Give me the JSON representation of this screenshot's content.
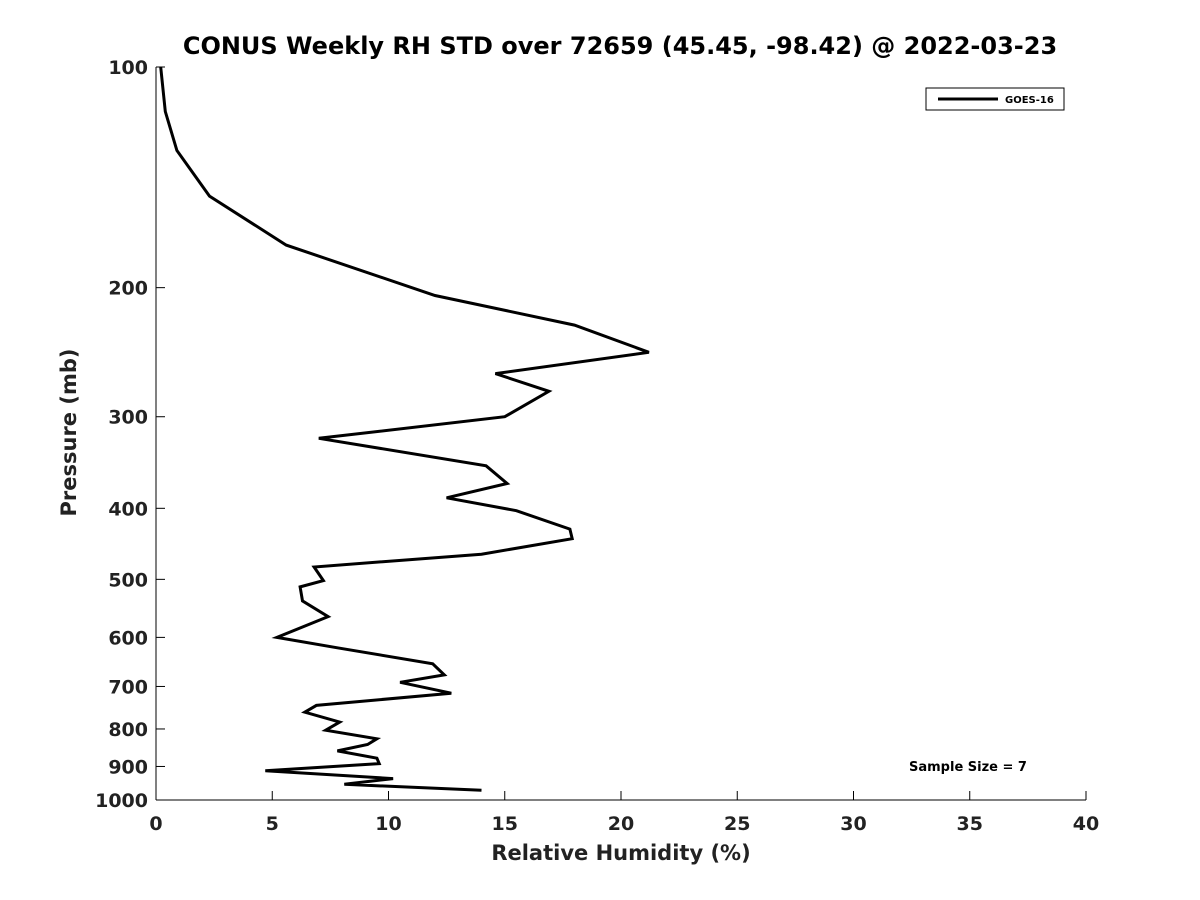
{
  "chart_data": {
    "type": "line",
    "title": "CONUS Weekly RH STD over 72659 (45.45, -98.42) @ 2022-03-23",
    "xlabel": "Relative Humidity (%)",
    "ylabel": "Pressure (mb)",
    "xlim": [
      0,
      40
    ],
    "ylim": [
      100,
      1000
    ],
    "y_scale": "log",
    "y_reversed": true,
    "grid": false,
    "legend_position": "top-right",
    "x_ticks": [
      0,
      5,
      10,
      15,
      20,
      25,
      30,
      35,
      40
    ],
    "x_tick_labels": [
      "0",
      "5",
      "10",
      "15",
      "20",
      "25",
      "30",
      "35",
      "40"
    ],
    "y_ticks": [
      100,
      200,
      300,
      400,
      500,
      600,
      700,
      800,
      900,
      1000
    ],
    "y_tick_labels": [
      "100",
      "200",
      "300",
      "400",
      "500",
      "600",
      "700",
      "800",
      "900",
      "1000"
    ],
    "series": [
      {
        "name": "GOES-16",
        "color": "#000000",
        "x": [
          0.2,
          0.4,
          0.9,
          2.3,
          5.6,
          12.0,
          18.0,
          21.2,
          14.6,
          16.9,
          15.0,
          7.0,
          14.2,
          15.1,
          12.5,
          15.5,
          17.8,
          17.9,
          14.0,
          6.8,
          7.2,
          6.2,
          6.3,
          7.4,
          5.2,
          7.8,
          11.9,
          12.4,
          10.5,
          12.7,
          6.9,
          6.4,
          7.9,
          7.3,
          9.5,
          9.1,
          7.8,
          9.5,
          9.6,
          4.7,
          10.2,
          8.1,
          14.0
        ],
        "y": [
          100,
          115,
          130,
          150,
          175,
          205,
          225,
          245,
          262,
          277,
          300,
          321,
          350,
          370,
          387,
          403,
          427,
          440,
          462,
          481,
          502,
          512,
          535,
          562,
          600,
          620,
          652,
          675,
          691,
          715,
          743,
          759,
          783,
          803,
          825,
          840,
          857,
          877,
          892,
          912,
          935,
          952,
          970
        ]
      }
    ],
    "annotations": [
      "Sample Size = 7"
    ]
  }
}
